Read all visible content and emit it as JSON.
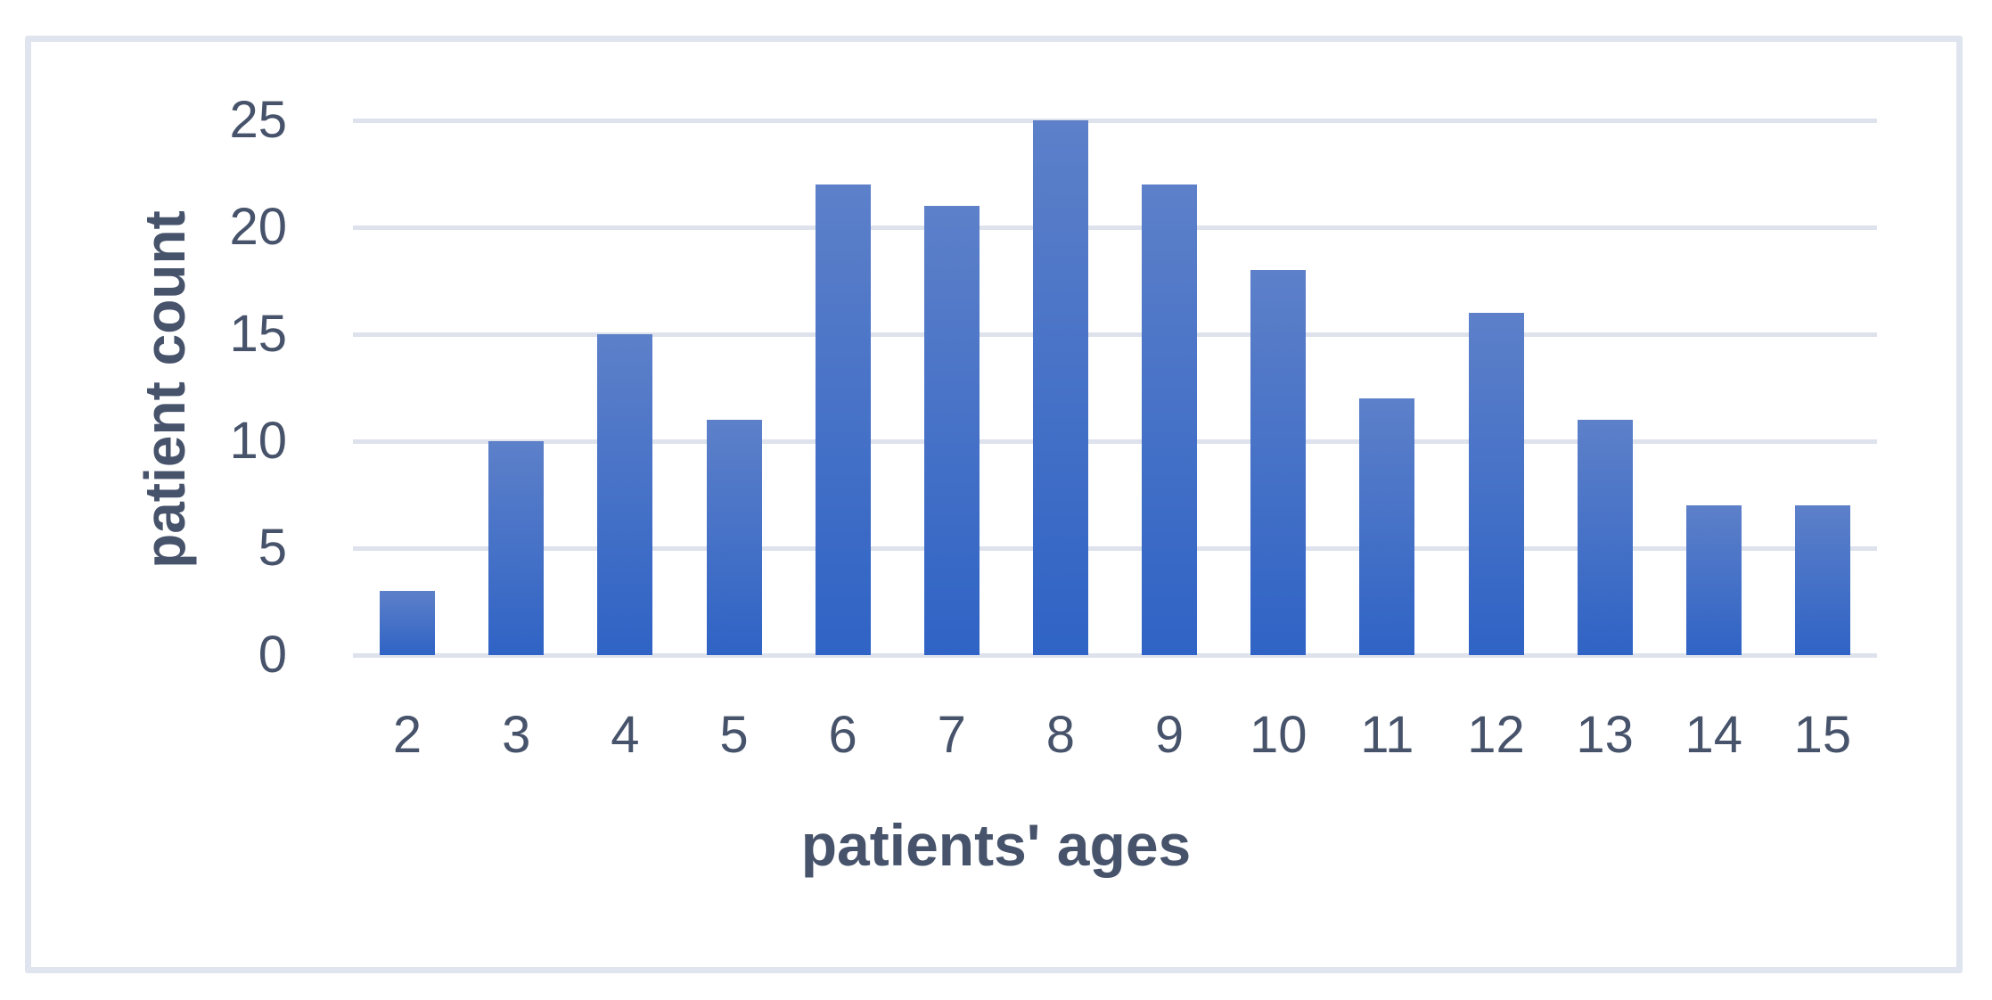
{
  "chart_data": {
    "type": "bar",
    "categories": [
      "2",
      "3",
      "4",
      "5",
      "6",
      "7",
      "8",
      "9",
      "10",
      "11",
      "12",
      "13",
      "14",
      "15"
    ],
    "values": [
      3,
      10,
      15,
      11,
      22,
      21,
      25,
      22,
      18,
      12,
      16,
      11,
      7,
      7
    ],
    "title": "",
    "xlabel": "patients' ages",
    "ylabel": "patient count",
    "ylim": [
      0,
      25
    ],
    "yticks": [
      0,
      5,
      10,
      15,
      20,
      25
    ],
    "grid": "horizontal-only",
    "legend": "none",
    "colors": {
      "bar_gradient_top": "#5d80c9",
      "bar_gradient_bottom": "#2f63c5",
      "gridline": "#dde2ec",
      "text": "#47536b",
      "frame_border": "#e0e4ee",
      "background": "#ffffff"
    }
  }
}
